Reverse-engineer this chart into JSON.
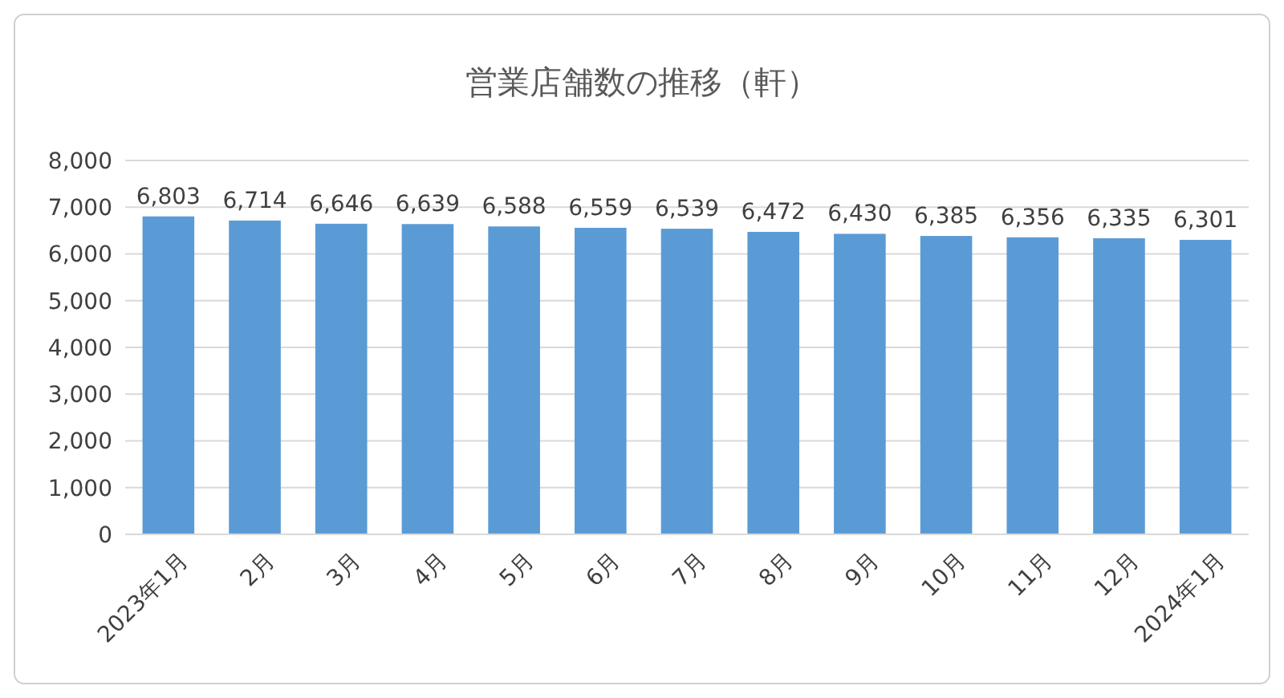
{
  "chart_data": {
    "type": "bar",
    "title": "営業店舗数の推移（軒）",
    "categories": [
      "2023年1月",
      "2月",
      "3月",
      "4月",
      "5月",
      "6月",
      "7月",
      "8月",
      "9月",
      "10月",
      "11月",
      "12月",
      "2024年1月"
    ],
    "values": [
      6803,
      6714,
      6646,
      6639,
      6588,
      6559,
      6539,
      6472,
      6430,
      6385,
      6356,
      6335,
      6301
    ],
    "color": "#5b9bd5",
    "value_labels": [
      "6,803",
      "6,714",
      "6,646",
      "6,639",
      "6,588",
      "6,559",
      "6,539",
      "6,472",
      "6,430",
      "6,385",
      "6,356",
      "6,335",
      "6,301"
    ],
    "ylim": [
      0,
      8000
    ],
    "yticks": [
      {
        "value": 0,
        "label": "0"
      },
      {
        "value": 1000,
        "label": "1,000"
      },
      {
        "value": 2000,
        "label": "2,000"
      },
      {
        "value": 3000,
        "label": "3,000"
      },
      {
        "value": 4000,
        "label": "4,000"
      },
      {
        "value": 5000,
        "label": "5,000"
      },
      {
        "value": 6000,
        "label": "6,000"
      },
      {
        "value": 7000,
        "label": "7,000"
      },
      {
        "value": 8000,
        "label": "8,000"
      }
    ],
    "grid": "y"
  }
}
